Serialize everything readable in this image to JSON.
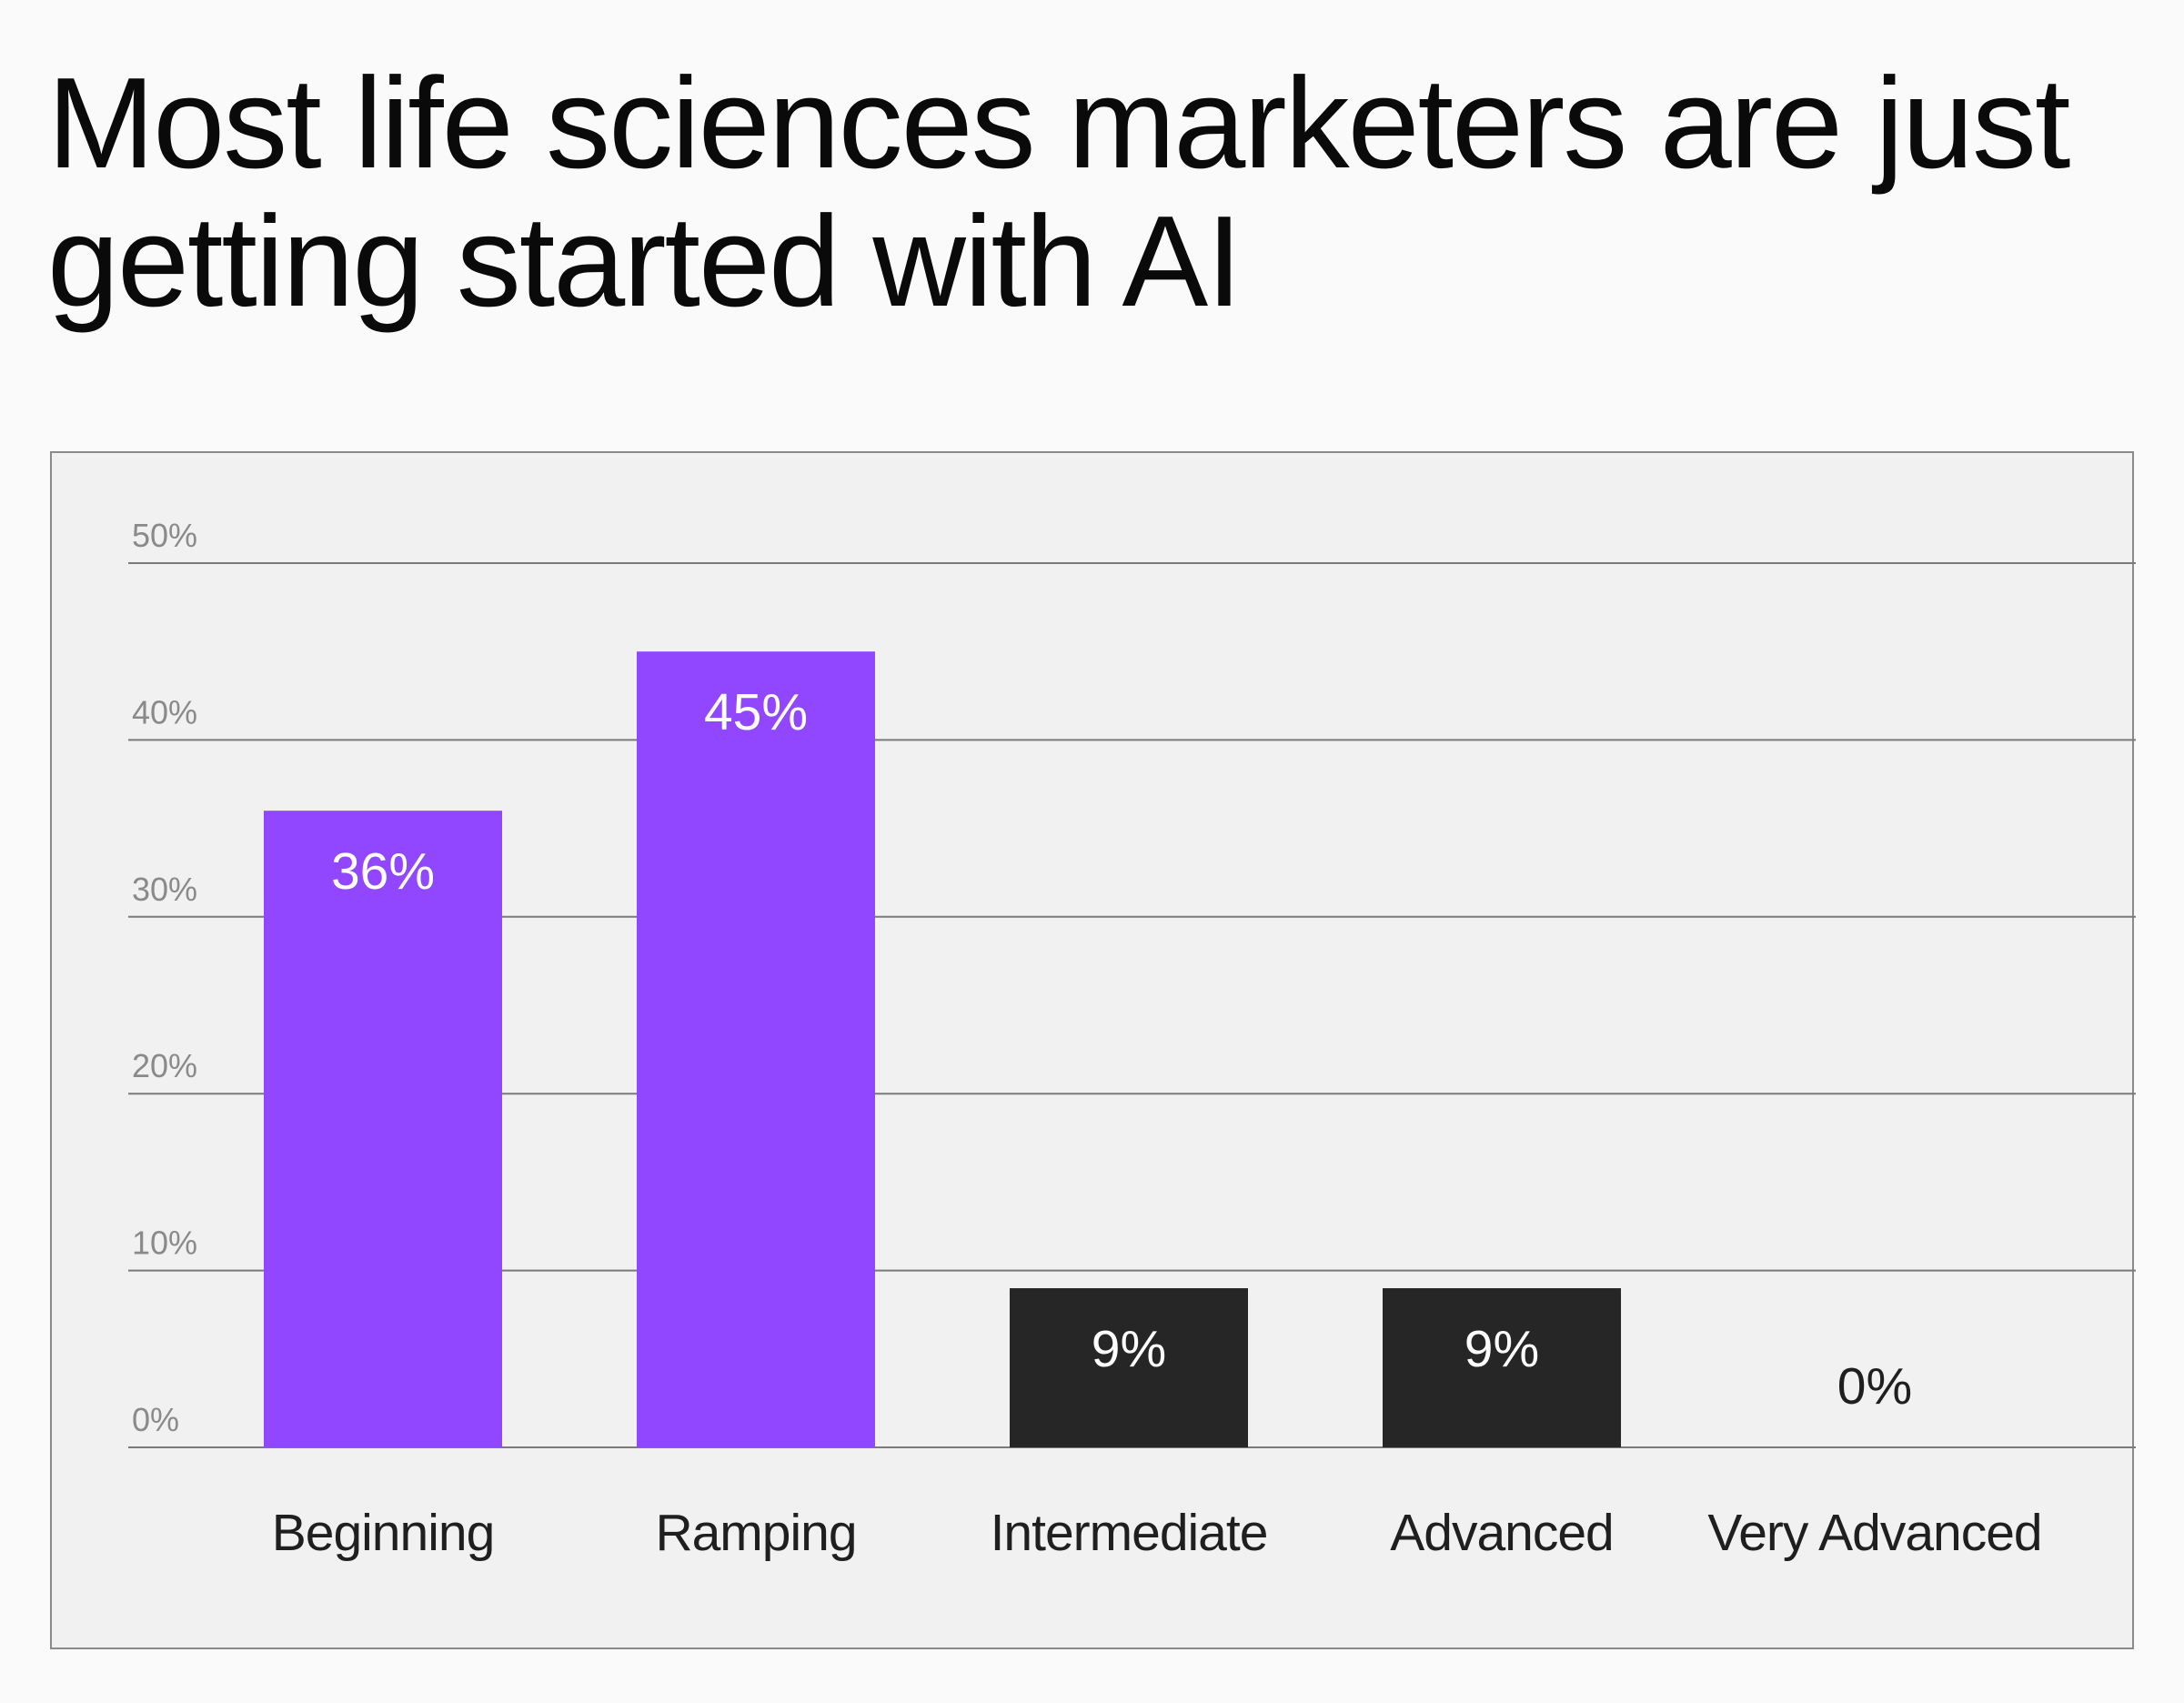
{
  "title": "Most life sciences marketers are just getting started with AI",
  "colors": {
    "background": "#fafafa",
    "panel": "#f1f1f1",
    "panel_border": "#8a8a8a",
    "gridline": "#7a7a7a",
    "tick_text": "#8a8a8a",
    "category_text": "#1f1f1f",
    "purple": "#9147ff",
    "dark": "#262626",
    "label_on_bar": "#ffffff",
    "label_no_bar": "#1f1f1f"
  },
  "chart_data": {
    "type": "bar",
    "title": "Most life sciences marketers are just getting started with AI",
    "xlabel": "",
    "ylabel": "",
    "categories": [
      "Beginning",
      "Ramping",
      "Intermediate",
      "Advanced",
      "Very Advanced"
    ],
    "values": [
      36,
      45,
      9,
      9,
      0
    ],
    "data_labels": [
      "36%",
      "45%",
      "9%",
      "9%",
      "0%"
    ],
    "bar_colors": [
      "#9147ff",
      "#9147ff",
      "#262626",
      "#262626",
      "#262626"
    ],
    "ylim": [
      0,
      50
    ],
    "yticks": [
      0,
      10,
      20,
      30,
      40,
      50
    ],
    "ytick_labels": [
      "0%",
      "10%",
      "20%",
      "30%",
      "40%",
      "50%"
    ],
    "grid": true,
    "legend": "none"
  }
}
